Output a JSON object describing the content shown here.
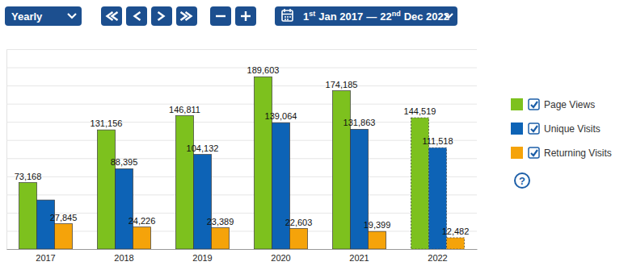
{
  "controls": {
    "period": "Yearly",
    "date_range": {
      "start_day": "1",
      "start_suffix": "st",
      "start_rest": "Jan 2017",
      "separator": "—",
      "end_day": "22",
      "end_suffix": "nd",
      "end_rest": "Dec 2022"
    },
    "help": "?"
  },
  "chart_data": {
    "type": "bar",
    "categories": [
      "2017",
      "2018",
      "2019",
      "2020",
      "2021",
      "2022"
    ],
    "series": [
      {
        "name": "Page Views",
        "color": "#7dc11e",
        "values": [
          73168,
          131156,
          146811,
          189603,
          174185,
          144519
        ],
        "value_labels": [
          "73,168",
          "131,156",
          "146,811",
          "189,603",
          "174,185",
          "144,519"
        ]
      },
      {
        "name": "Unique Visits",
        "color": "#0d63b6",
        "values": [
          54000,
          88395,
          104132,
          139064,
          131863,
          111518
        ],
        "value_labels": [
          null,
          "88,395",
          "104,132",
          "139,064",
          "131,863",
          "111,518"
        ]
      },
      {
        "name": "Returning Visits",
        "color": "#f5a30a",
        "values": [
          27845,
          24226,
          23389,
          22603,
          19399,
          12482
        ],
        "value_labels": [
          "27,845",
          "24,226",
          "23,389",
          "22,603",
          "19,399",
          "12,482"
        ]
      }
    ],
    "ylim": [
      0,
      220000
    ],
    "yticks": [
      0,
      20000,
      40000,
      60000,
      80000,
      100000,
      120000,
      140000,
      160000,
      180000,
      200000,
      220000
    ],
    "grid": true,
    "data_labels": true,
    "tick_labels": "x",
    "legend": "right"
  }
}
